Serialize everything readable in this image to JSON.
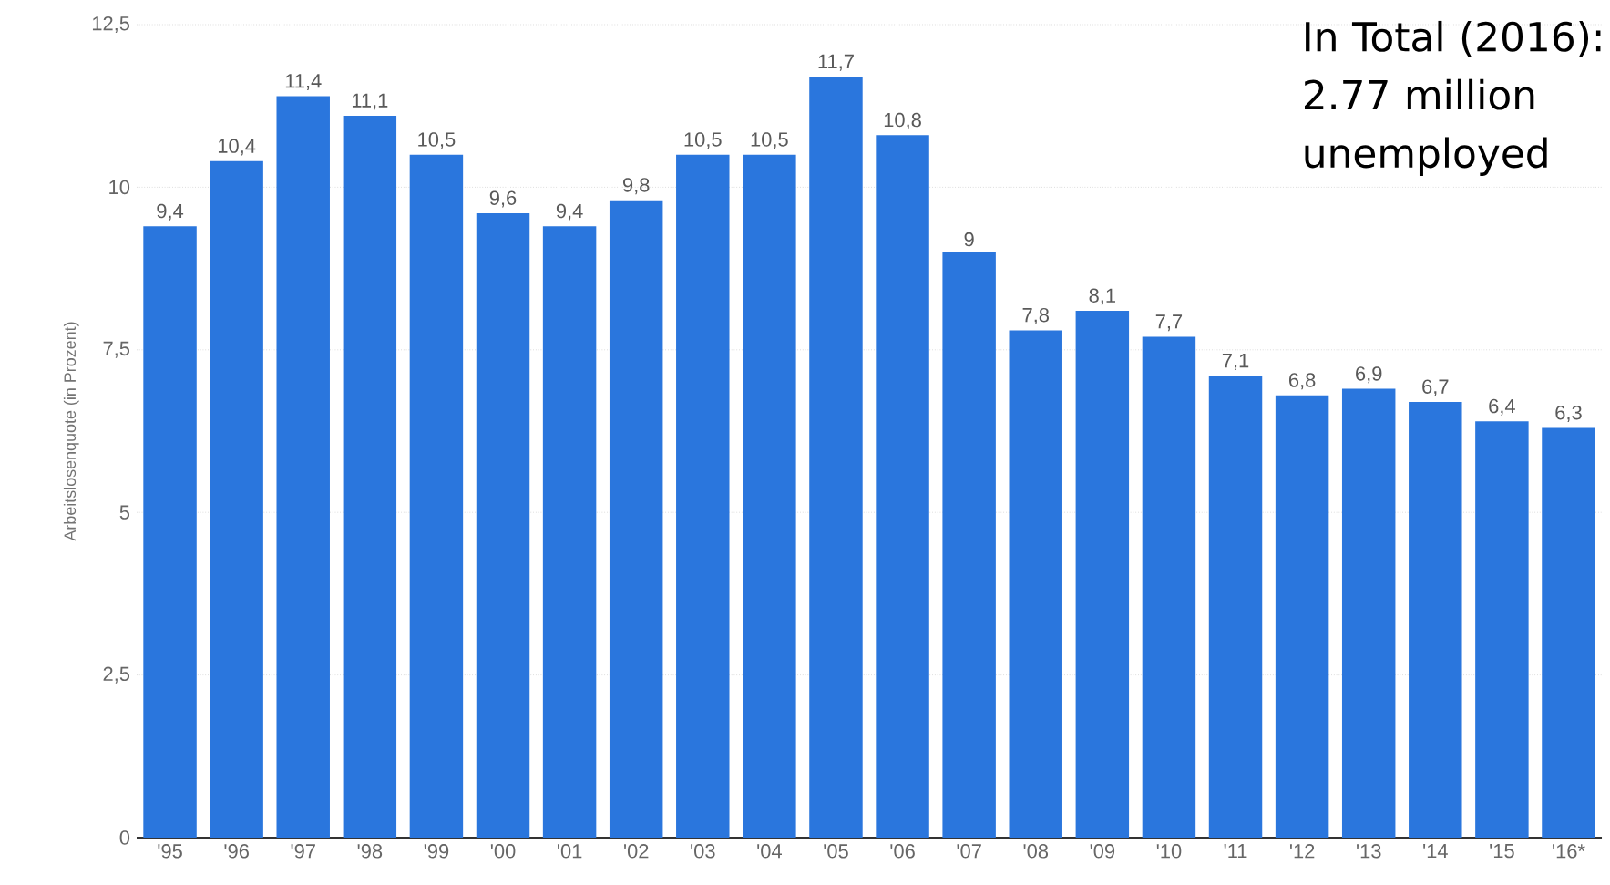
{
  "chart_data": {
    "type": "bar",
    "ylabel": "Arbeitslosenquote (in Prozent)",
    "categories": [
      "'95",
      "'96",
      "'97",
      "'98",
      "'99",
      "'00",
      "'01",
      "'02",
      "'03",
      "'04",
      "'05",
      "'06",
      "'07",
      "'08",
      "'09",
      "'10",
      "'11",
      "'12",
      "'13",
      "'14",
      "'15",
      "'16*"
    ],
    "values": [
      9.4,
      10.4,
      11.4,
      11.1,
      10.5,
      9.6,
      9.4,
      9.8,
      10.5,
      10.5,
      11.7,
      10.8,
      9,
      7.8,
      8.1,
      7.7,
      7.1,
      6.8,
      6.9,
      6.7,
      6.4,
      6.3
    ],
    "value_labels": [
      "9,4",
      "10,4",
      "11,4",
      "11,1",
      "10,5",
      "9,6",
      "9,4",
      "9,8",
      "10,5",
      "10,5",
      "11,7",
      "10,8",
      "9",
      "7,8",
      "8,1",
      "7,7",
      "7,1",
      "6,8",
      "6,9",
      "6,7",
      "6,4",
      "6,3"
    ],
    "color": "#2a76dd",
    "ylim": [
      0,
      12.5
    ],
    "yticks": [
      0,
      {
        "value": 2.5,
        "label": "2,5"
      },
      5,
      {
        "value": 7.5,
        "label": "7,5"
      },
      10,
      {
        "value": 12.5,
        "label": "12,5"
      }
    ],
    "grid": "y",
    "annotations": [
      "In Total (2016): 2.77 million unemployed"
    ]
  }
}
